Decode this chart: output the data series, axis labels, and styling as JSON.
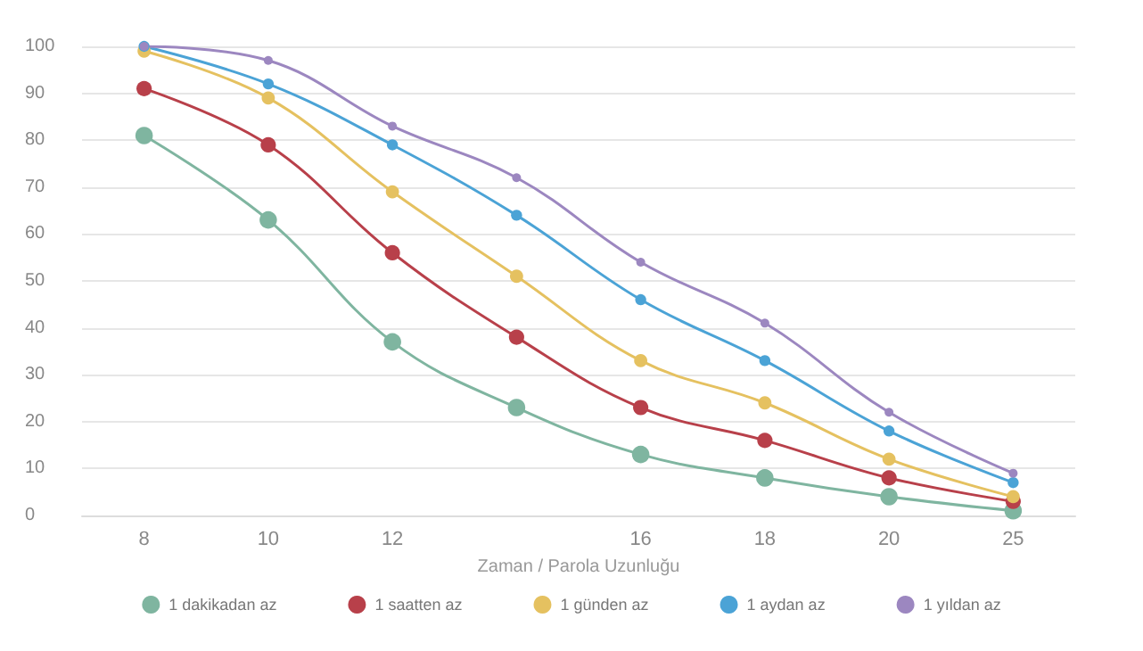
{
  "chart_data": {
    "type": "line",
    "xlabel": "Zaman / Parola Uzunluğu",
    "categories": [
      "8",
      "10",
      "12",
      null,
      "16",
      "18",
      "20",
      "25"
    ],
    "ylim": [
      0,
      100
    ],
    "yticks": [
      0,
      10,
      20,
      30,
      40,
      50,
      60,
      70,
      80,
      90,
      100
    ],
    "grid": "y",
    "legend": "bottom",
    "marker": "circle",
    "line_style": "solid",
    "series": [
      {
        "name": "1 dakikadan az",
        "color": "#7fb5a0",
        "values": [
          81,
          63,
          37,
          23,
          13,
          8,
          4,
          1
        ]
      },
      {
        "name": "1 saatten az",
        "color": "#b8404a",
        "values": [
          91,
          79,
          56,
          38,
          23,
          16,
          8,
          3
        ]
      },
      {
        "name": "1 günden az",
        "color": "#e5c160",
        "values": [
          99,
          89,
          69,
          51,
          33,
          24,
          12,
          4
        ]
      },
      {
        "name": "1 aydan az",
        "color": "#4ba3d6",
        "values": [
          100,
          92,
          79,
          64,
          46,
          33,
          18,
          7
        ]
      },
      {
        "name": "1 yıldan az",
        "color": "#9c87c0",
        "values": [
          100,
          97,
          83,
          72,
          54,
          41,
          22,
          9
        ]
      }
    ]
  }
}
